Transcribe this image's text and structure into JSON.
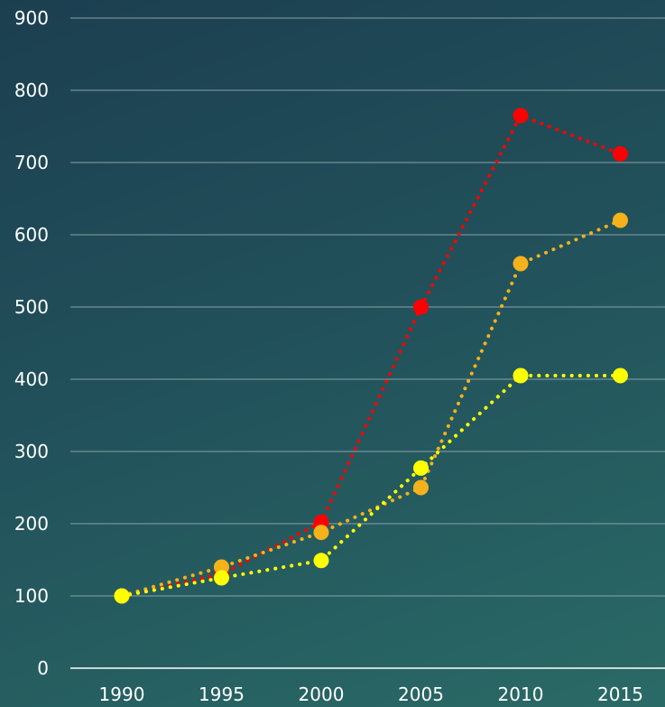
{
  "chart_data": {
    "type": "line",
    "title": "",
    "xlabel": "",
    "ylabel": "",
    "x": [
      1990,
      1995,
      2000,
      2005,
      2010,
      2015
    ],
    "x_tick_labels": [
      "1990",
      "1995",
      "2000",
      "2005",
      "2010",
      "2015"
    ],
    "y_ticks": [
      0,
      100,
      200,
      300,
      400,
      500,
      600,
      700,
      800,
      900
    ],
    "y_tick_labels": [
      "0",
      "100",
      "200",
      "300",
      "400",
      "500",
      "600",
      "700",
      "800",
      "900"
    ],
    "ylim": [
      0,
      900
    ],
    "grid": true,
    "legend": "none",
    "line_style": "dotted",
    "series": [
      {
        "color": "#ff0000",
        "values": [
          100,
          130,
          202,
          500,
          765,
          712
        ]
      },
      {
        "color": "#f5b21b",
        "values": [
          100,
          140,
          188,
          250,
          560,
          620
        ]
      },
      {
        "color": "#ffff00",
        "values": [
          100,
          125,
          149,
          277,
          405,
          405
        ]
      }
    ]
  },
  "colors": {
    "grid": "#8aa0a8",
    "axis": "#ffffff",
    "tick_text": "#ffffff"
  }
}
